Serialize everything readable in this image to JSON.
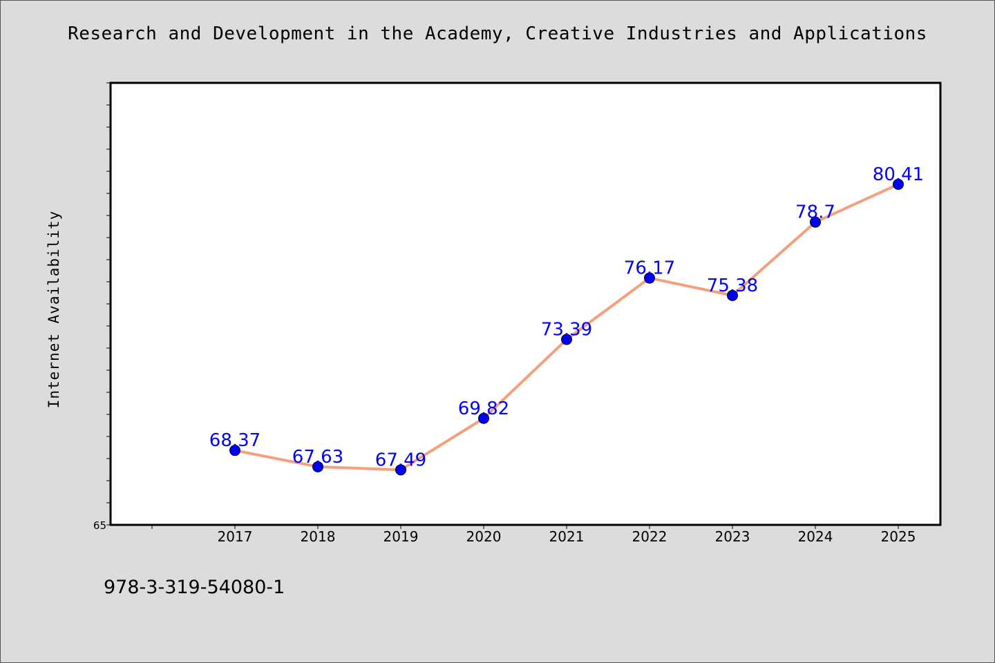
{
  "footnote": "978-3-319-54080-1",
  "colors": {
    "background": "#dcdcdc",
    "plot_area": "#ffffff",
    "line": "#f4a07d",
    "marker": "#0000ff",
    "data_label": "#0000ff"
  },
  "chart_data": {
    "type": "line",
    "title": "Research and Development in the Academy, Creative Industries and Applications",
    "xlabel": "",
    "ylabel": "Internet Availability",
    "categories": [
      "2017",
      "2018",
      "2019",
      "2020",
      "2021",
      "2022",
      "2023",
      "2024",
      "2025"
    ],
    "series": [
      {
        "values": [
          68.37,
          67.63,
          67.49,
          69.82,
          73.39,
          76.17,
          75.38,
          78.7,
          80.41
        ],
        "labels": [
          "68.37",
          "67.63",
          "67.49",
          "69.82",
          "73.39",
          "76.17",
          "75.38",
          "78.7",
          "80.41"
        ]
      }
    ],
    "ylim": [
      65,
      85
    ],
    "ytick_labels": [
      "65"
    ],
    "grid": false,
    "legend": "none"
  }
}
